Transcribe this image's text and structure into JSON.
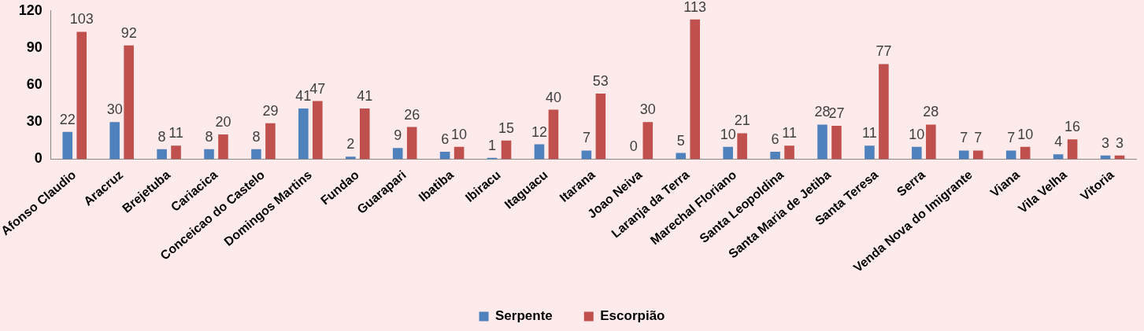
{
  "chart_data": {
    "type": "bar",
    "categories": [
      "Afonso Claudio",
      "Aracruz",
      "Brejetuba",
      "Cariacica",
      "Conceicao do Castelo",
      "Domingos Martins",
      "Fundao",
      "Guarapari",
      "Ibatiba",
      "Ibiracu",
      "Itaguacu",
      "Itarana",
      "Joao Neiva",
      "Laranja da Terra",
      "Marechal Floriano",
      "Santa Leopoldina",
      "Santa Maria de Jetiba",
      "Santa Teresa",
      "Serra",
      "Venda Nova do Imigrante",
      "Viana",
      "Vila Velha",
      "Vitoria"
    ],
    "series": [
      {
        "name": "Serpente",
        "color": "#4f81bd",
        "values": [
          22,
          30,
          8,
          8,
          8,
          41,
          2,
          9,
          6,
          1,
          12,
          7,
          0,
          5,
          10,
          6,
          28,
          11,
          10,
          7,
          7,
          4,
          3
        ]
      },
      {
        "name": "Escorpião",
        "color": "#c0504d",
        "values": [
          103,
          92,
          11,
          20,
          29,
          47,
          41,
          26,
          10,
          15,
          40,
          53,
          30,
          113,
          21,
          11,
          27,
          77,
          28,
          7,
          10,
          16,
          3
        ]
      }
    ],
    "ylim": [
      0,
      120
    ],
    "yticks": [
      0,
      30,
      60,
      90,
      120
    ],
    "grid": false,
    "legend": "bottom",
    "data_labels": true
  }
}
